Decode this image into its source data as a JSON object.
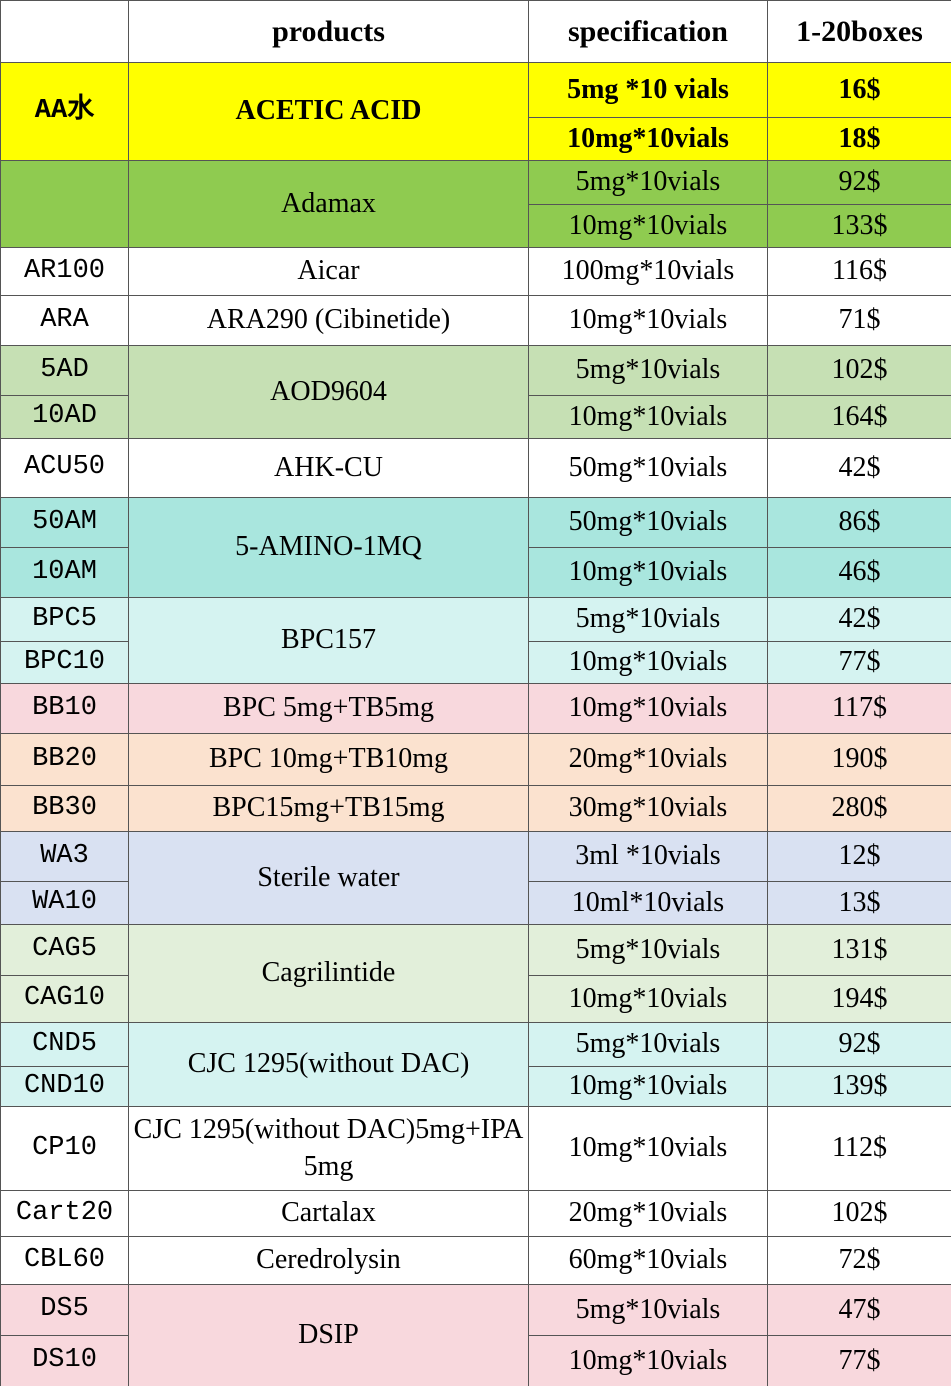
{
  "header": [
    "products",
    "specification",
    "1-20boxes"
  ],
  "groups": [
    {
      "codes": [
        "AA水"
      ],
      "product": "ACETIC  ACID",
      "options": [
        {
          "spec": "5mg *10 vials",
          "price": "16$"
        },
        {
          "spec": "10mg*10vials",
          "price": "18$"
        }
      ],
      "color": "#ffff00",
      "code_color": "#ffff00",
      "bold": true
    },
    {
      "codes": [],
      "product": "Adamax",
      "options": [
        {
          "spec": "5mg*10vials",
          "price": "92$"
        },
        {
          "spec": "10mg*10vials",
          "price": "133$"
        }
      ],
      "color": "#8fcb50",
      "code_color": "#8fcb50"
    },
    {
      "codes": [
        "AR100"
      ],
      "product": "Aicar",
      "options": [
        {
          "spec": "100mg*10vials",
          "price": "116$"
        }
      ],
      "color": "#ffffff",
      "code_color": "#ffffff"
    },
    {
      "codes": [
        "ARA"
      ],
      "product": "ARA290 (Cibinetide)",
      "options": [
        {
          "spec": "10mg*10vials",
          "price": "71$"
        }
      ],
      "color": "#ffffff",
      "code_color": "#ffffff"
    },
    {
      "codes": [
        "5AD",
        "10AD"
      ],
      "product": "AOD9604",
      "options": [
        {
          "spec": "5mg*10vials",
          "price": "102$"
        },
        {
          "spec": "10mg*10vials",
          "price": "164$"
        }
      ],
      "color": "#c6e0b4",
      "code_color": "#c6e0b4"
    },
    {
      "codes": [
        "ACU50"
      ],
      "product": "AHK-CU",
      "options": [
        {
          "spec": "50mg*10vials",
          "price": "42$"
        }
      ],
      "color": "#ffffff",
      "code_color": "#ffffff"
    },
    {
      "codes": [
        "50AM",
        "10AM"
      ],
      "product": "5-AMINO-1MQ",
      "options": [
        {
          "spec": "50mg*10vials",
          "price": "86$"
        },
        {
          "spec": "10mg*10vials",
          "price": "46$"
        }
      ],
      "color": "#a9e6de",
      "code_color": "#a9e6de"
    },
    {
      "codes": [
        "BPC5",
        "BPC10"
      ],
      "product": "BPC157",
      "options": [
        {
          "spec": "5mg*10vials",
          "price": "42$"
        },
        {
          "spec": "10mg*10vials",
          "price": "77$"
        }
      ],
      "color": "#d5f3f1",
      "code_color": "#d5f3f1"
    },
    {
      "codes": [
        "BB10"
      ],
      "product": "BPC 5mg+TB5mg",
      "options": [
        {
          "spec": "10mg*10vials",
          "price": "117$"
        }
      ],
      "color": "#f8d8dd",
      "code_color": "#f8d8dd"
    },
    {
      "codes": [
        "BB20"
      ],
      "product": "BPC 10mg+TB10mg",
      "options": [
        {
          "spec": "20mg*10vials",
          "price": "190$"
        }
      ],
      "color": "#fbe2cf",
      "code_color": "#fbe2cf"
    },
    {
      "codes": [
        "BB30"
      ],
      "product": "BPC15mg+TB15mg",
      "options": [
        {
          "spec": "30mg*10vials",
          "price": "280$"
        }
      ],
      "color": "#fbe2cf",
      "code_color": "#fbe2cf"
    },
    {
      "codes": [
        "WA3",
        "WA10"
      ],
      "product": "Sterile  water",
      "options": [
        {
          "spec": "3ml *10vials",
          "price": "12$"
        },
        {
          "spec": "10ml*10vials",
          "price": "13$"
        }
      ],
      "color": "#d9e1f2",
      "code_color": "#d9e1f2"
    },
    {
      "codes": [
        "CAG5",
        "CAG10"
      ],
      "product": "Cagrilintide",
      "options": [
        {
          "spec": "5mg*10vials",
          "price": "131$"
        },
        {
          "spec": "10mg*10vials",
          "price": "194$"
        }
      ],
      "color": "#e2efda",
      "code_color": "#e2efda"
    },
    {
      "codes": [
        "CND5",
        "CND10"
      ],
      "product": "CJC 1295(without DAC)",
      "options": [
        {
          "spec": "5mg*10vials",
          "price": "92$"
        },
        {
          "spec": "10mg*10vials",
          "price": "139$"
        }
      ],
      "color": "#d5f3f1",
      "code_color": "#d5f3f1"
    },
    {
      "codes": [
        "CP10"
      ],
      "product": "CJC 1295(without DAC)5mg+IPA 5mg",
      "options": [
        {
          "spec": "10mg*10vials",
          "price": "112$"
        }
      ],
      "color": "#ffffff",
      "code_color": "#ffffff"
    },
    {
      "codes": [
        "Cart20"
      ],
      "product": "Cartalax",
      "options": [
        {
          "spec": "20mg*10vials",
          "price": "102$"
        }
      ],
      "color": "#ffffff",
      "code_color": "#ffffff"
    },
    {
      "codes": [
        "CBL60"
      ],
      "product": "Ceredrolysin",
      "options": [
        {
          "spec": "60mg*10vials",
          "price": "72$"
        }
      ],
      "color": "#ffffff",
      "code_color": "#ffffff"
    },
    {
      "codes": [
        "DS5",
        "DS10"
      ],
      "product": "DSIP",
      "options": [
        {
          "spec": "5mg*10vials",
          "price": "47$"
        },
        {
          "spec": "10mg*10vials",
          "price": "77$"
        }
      ],
      "color": "#f8d8dd",
      "code_color": "#f8d8dd"
    }
  ]
}
